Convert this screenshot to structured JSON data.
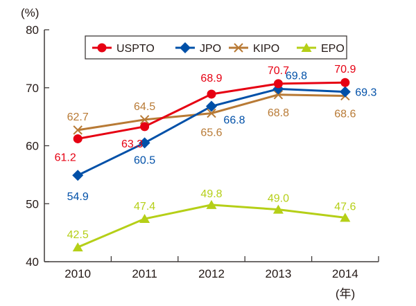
{
  "chart_data": {
    "type": "line",
    "title": "",
    "ylabel": "(%)",
    "xlabel": "(年)",
    "ylim": [
      40,
      80
    ],
    "yticks": [
      40,
      50,
      60,
      70,
      80
    ],
    "categories": [
      "2010",
      "2011",
      "2012",
      "2013",
      "2014"
    ],
    "grid": false,
    "legend_position": "top",
    "series": [
      {
        "name": "USPTO",
        "color": "#e60012",
        "marker": "circle",
        "values": [
          61.2,
          63.3,
          68.9,
          70.7,
          70.9
        ],
        "labels": [
          "61.2",
          "63.3",
          "68.9",
          "70.7",
          "70.9"
        ]
      },
      {
        "name": "JPO",
        "color": "#0050a8",
        "marker": "diamond",
        "values": [
          54.9,
          60.5,
          66.8,
          69.8,
          69.3
        ],
        "labels": [
          "54.9",
          "60.5",
          "66.8",
          "69.8",
          "69.3"
        ]
      },
      {
        "name": "KIPO",
        "color": "#b87a35",
        "marker": "x",
        "values": [
          62.7,
          64.5,
          65.6,
          68.8,
          68.6
        ],
        "labels": [
          "62.7",
          "64.5",
          "65.6",
          "68.8",
          "68.6"
        ]
      },
      {
        "name": "EPO",
        "color": "#b5cf17",
        "marker": "triangle",
        "values": [
          42.5,
          47.4,
          49.8,
          49.0,
          47.6
        ],
        "labels": [
          "42.5",
          "47.4",
          "49.8",
          "49.0",
          "47.6"
        ]
      }
    ]
  }
}
